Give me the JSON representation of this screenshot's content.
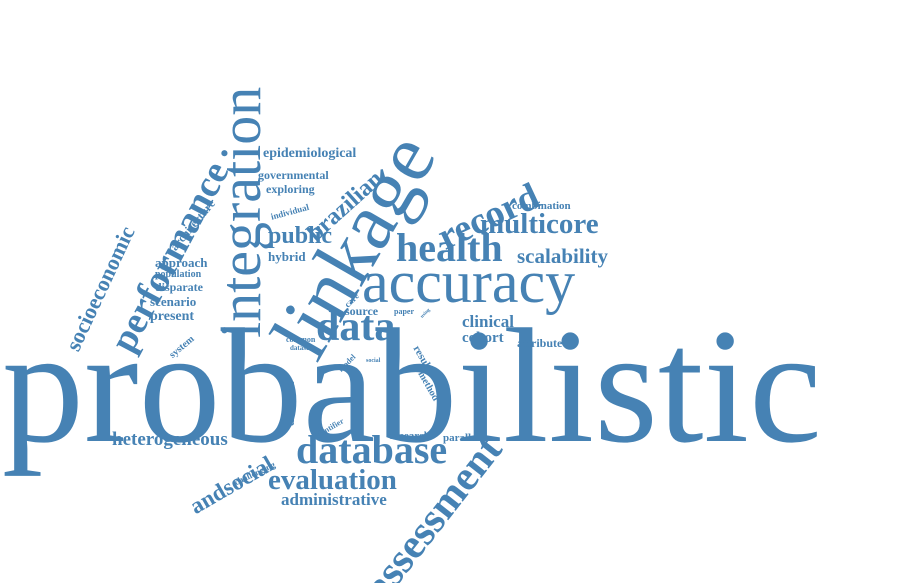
{
  "cloud": {
    "color": "#4682b4",
    "words": [
      {
        "text": "probabilistic",
        "rotate": 0
      },
      {
        "text": "linkage",
        "rotate": -60
      },
      {
        "text": "integration",
        "rotate": -90
      },
      {
        "text": "accuracy",
        "rotate": 0
      },
      {
        "text": "performance",
        "rotate": -62
      },
      {
        "text": "socioeconomic",
        "rotate": -65
      },
      {
        "text": "assessment",
        "rotate": -52
      },
      {
        "text": "database",
        "rotate": 0
      },
      {
        "text": "evaluation",
        "rotate": 0
      },
      {
        "text": "health",
        "rotate": 0
      },
      {
        "text": "record",
        "rotate": -25
      },
      {
        "text": "data",
        "rotate": 0
      },
      {
        "text": "multicore",
        "rotate": 0
      },
      {
        "text": "scalability",
        "rotate": 0
      },
      {
        "text": "brazilian",
        "rotate": -42
      },
      {
        "text": "public",
        "rotate": 0
      },
      {
        "text": "andsocial",
        "rotate": -30
      },
      {
        "text": "heterogeneous",
        "rotate": 0
      },
      {
        "text": "administrative",
        "rotate": 0
      },
      {
        "text": "epidemiological",
        "rotate": 0
      },
      {
        "text": "governmental",
        "rotate": 0
      },
      {
        "text": "exploring",
        "rotate": 0
      },
      {
        "text": "hybrid",
        "rotate": 0
      },
      {
        "text": "clinical",
        "rotate": 0
      },
      {
        "text": "cohort",
        "rotate": 0
      },
      {
        "text": "attribute",
        "rotate": 0
      },
      {
        "text": "combination",
        "rotate": 0
      },
      {
        "text": "architecture",
        "rotate": -50
      },
      {
        "text": "approach",
        "rotate": 0
      },
      {
        "text": "population",
        "rotate": 0
      },
      {
        "text": "disparate",
        "rotate": 0
      },
      {
        "text": "scenario",
        "rotate": 0
      },
      {
        "text": "present",
        "rotate": 0
      },
      {
        "text": "system",
        "rotate": -40
      },
      {
        "text": "source",
        "rotate": 0
      },
      {
        "text": "paper",
        "rotate": 0
      },
      {
        "text": "care",
        "rotate": -45
      },
      {
        "text": "common",
        "rotate": 0
      },
      {
        "text": "dataset",
        "rotate": 0
      },
      {
        "text": "model",
        "rotate": -45
      },
      {
        "text": "social",
        "rotate": 0
      },
      {
        "text": "result",
        "rotate": 60
      },
      {
        "text": "method",
        "rotate": 60
      },
      {
        "text": "different",
        "rotate": -90
      },
      {
        "text": "identifier",
        "rotate": -30
      },
      {
        "text": "research",
        "rotate": 0
      },
      {
        "text": "parallel",
        "rotate": 0
      },
      {
        "text": "challenging",
        "rotate": -25
      },
      {
        "text": "individual",
        "rotate": -15
      },
      {
        "text": "using",
        "rotate": -45
      }
    ]
  }
}
